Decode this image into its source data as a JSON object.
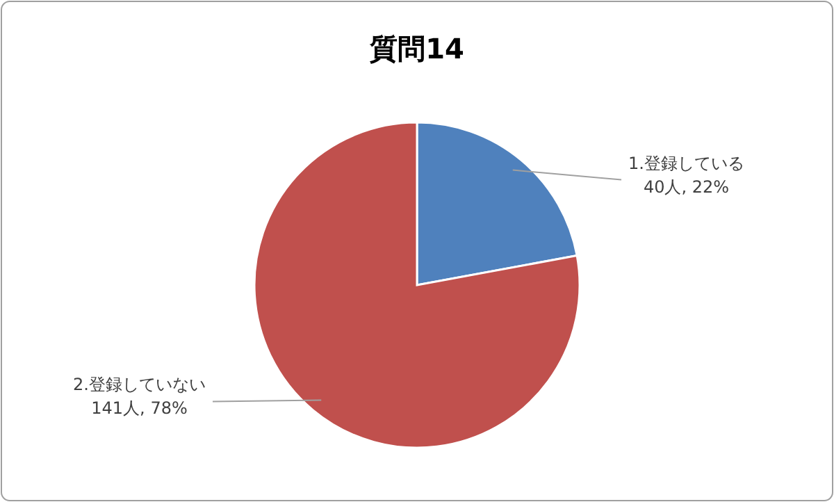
{
  "chart_data": {
    "type": "pie",
    "title": "質問14",
    "categories": [
      "1.登録している",
      "2.登録していない"
    ],
    "values": [
      40,
      141
    ],
    "value_labels": [
      "40人, 22%",
      "141人, 78%"
    ],
    "colors": [
      "#4f81bd",
      "#c0504d"
    ],
    "legend": false
  }
}
